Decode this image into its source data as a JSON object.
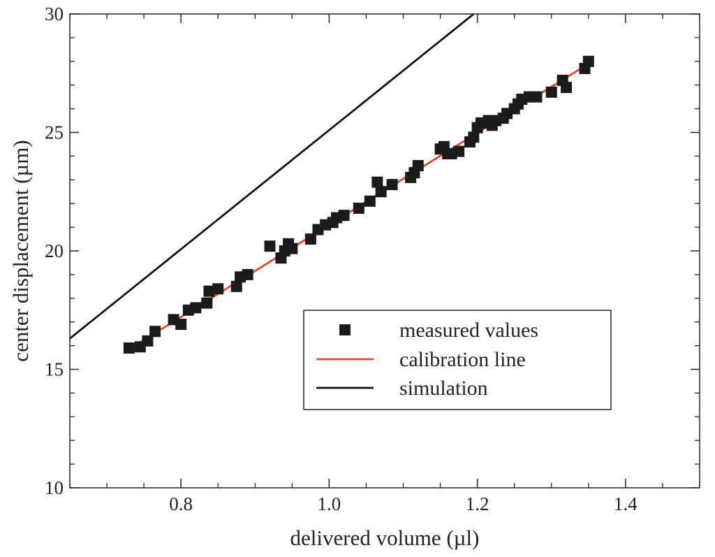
{
  "chart_data": {
    "type": "scatter",
    "title": "",
    "xlabel": "delivered volume (µl)",
    "ylabel": "center displacement (µm)",
    "xlim": [
      0.65,
      1.5
    ],
    "ylim": [
      10,
      30
    ],
    "x_ticks": [
      0.8,
      1.0,
      1.2,
      1.4
    ],
    "x_tick_labels": [
      "0.8",
      "1.0",
      "1.2",
      "1.4"
    ],
    "y_ticks": [
      10,
      15,
      20,
      25,
      30
    ],
    "y_tick_labels": [
      "10",
      "15",
      "20",
      "25",
      "30"
    ],
    "x_minor_step": 0.05,
    "y_minor_step": 1,
    "grid": false,
    "legend_position": "center-right",
    "series": [
      {
        "name": "measured values",
        "kind": "scatter",
        "marker": "square",
        "color": "#1a1a1a",
        "points": [
          [
            0.73,
            15.9
          ],
          [
            0.745,
            15.95
          ],
          [
            0.755,
            16.2
          ],
          [
            0.765,
            16.6
          ],
          [
            0.79,
            17.1
          ],
          [
            0.8,
            16.9
          ],
          [
            0.81,
            17.5
          ],
          [
            0.82,
            17.6
          ],
          [
            0.835,
            17.8
          ],
          [
            0.838,
            18.3
          ],
          [
            0.85,
            18.4
          ],
          [
            0.875,
            18.5
          ],
          [
            0.88,
            18.9
          ],
          [
            0.89,
            19.0
          ],
          [
            0.92,
            20.2
          ],
          [
            0.935,
            19.7
          ],
          [
            0.94,
            20.0
          ],
          [
            0.945,
            20.3
          ],
          [
            0.95,
            20.1
          ],
          [
            0.975,
            20.5
          ],
          [
            0.985,
            20.9
          ],
          [
            0.995,
            21.1
          ],
          [
            1.005,
            21.2
          ],
          [
            1.01,
            21.4
          ],
          [
            1.02,
            21.5
          ],
          [
            1.04,
            21.8
          ],
          [
            1.055,
            22.1
          ],
          [
            1.065,
            22.9
          ],
          [
            1.07,
            22.5
          ],
          [
            1.085,
            22.8
          ],
          [
            1.11,
            23.1
          ],
          [
            1.115,
            23.3
          ],
          [
            1.12,
            23.6
          ],
          [
            1.15,
            24.3
          ],
          [
            1.155,
            24.4
          ],
          [
            1.16,
            24.1
          ],
          [
            1.165,
            24.1
          ],
          [
            1.175,
            24.2
          ],
          [
            1.19,
            24.6
          ],
          [
            1.195,
            24.8
          ],
          [
            1.2,
            25.2
          ],
          [
            1.205,
            25.4
          ],
          [
            1.215,
            25.5
          ],
          [
            1.22,
            25.3
          ],
          [
            1.225,
            25.5
          ],
          [
            1.235,
            25.6
          ],
          [
            1.24,
            25.8
          ],
          [
            1.25,
            26.0
          ],
          [
            1.255,
            26.2
          ],
          [
            1.26,
            26.4
          ],
          [
            1.27,
            26.5
          ],
          [
            1.28,
            26.5
          ],
          [
            1.3,
            26.7
          ],
          [
            1.315,
            27.2
          ],
          [
            1.32,
            26.9
          ],
          [
            1.345,
            27.7
          ],
          [
            1.35,
            28.0
          ]
        ]
      },
      {
        "name": "calibration line",
        "kind": "line",
        "color": "#e8452c",
        "x": [
          0.73,
          1.35
        ],
        "y": [
          15.85,
          27.9
        ]
      },
      {
        "name": "simulation",
        "kind": "line",
        "color": "#111111",
        "x": [
          0.65,
          1.195
        ],
        "y": [
          16.3,
          30.0
        ]
      }
    ],
    "legend_entries": [
      "measured values",
      "calibration line",
      "simulation"
    ]
  }
}
